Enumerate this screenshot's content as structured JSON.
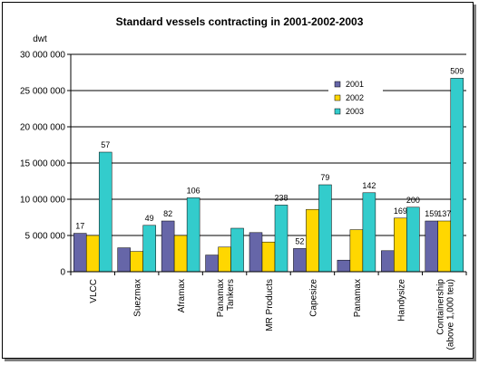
{
  "chart_data": {
    "type": "bar",
    "title": "Standard vessels contracting in 2001-2002-2003",
    "ylabel": "dwt",
    "xlabel": "",
    "ylim": [
      0,
      30000000
    ],
    "yticks": [
      "0",
      "5 000 000",
      "10 000 000",
      "15 000 000",
      "20 000 000",
      "25 000 000",
      "30 000 000"
    ],
    "ytick_values": [
      0,
      5000000,
      10000000,
      15000000,
      20000000,
      25000000,
      30000000
    ],
    "grid": "horizontal",
    "legend_position": "top-right",
    "categories": [
      [
        "VLCC"
      ],
      [
        "Suezmax"
      ],
      [
        "Aframax"
      ],
      [
        "Panamax",
        "Tankers"
      ],
      [
        "MR Products"
      ],
      [
        "Capesize"
      ],
      [
        "Panamax"
      ],
      [
        "Handysize"
      ],
      [
        "Containership",
        "(above 1,000 teu)"
      ]
    ],
    "series": [
      {
        "name": "2001",
        "color": "#6666a8",
        "values": [
          5300000,
          3300000,
          7000000,
          2300000,
          5400000,
          3200000,
          1600000,
          2900000,
          7000000
        ]
      },
      {
        "name": "2002",
        "color": "#ffd700",
        "values": [
          5000000,
          2800000,
          5000000,
          3400000,
          4100000,
          8600000,
          5800000,
          7400000,
          7000000
        ]
      },
      {
        "name": "2003",
        "color": "#33cccc",
        "values": [
          16500000,
          6400000,
          10200000,
          6000000,
          9200000,
          12000000,
          10900000,
          8900000,
          26700000
        ]
      }
    ],
    "data_labels": [
      {
        "category": 0,
        "series": 0,
        "text": "17"
      },
      {
        "category": 0,
        "series": 2,
        "text": "57"
      },
      {
        "category": 1,
        "series": 2,
        "text": "49"
      },
      {
        "category": 2,
        "series": 0,
        "text": "82"
      },
      {
        "category": 2,
        "series": 2,
        "text": "106"
      },
      {
        "category": 4,
        "series": 2,
        "text": "238"
      },
      {
        "category": 5,
        "series": 0,
        "text": "52"
      },
      {
        "category": 5,
        "series": 2,
        "text": "79"
      },
      {
        "category": 6,
        "series": 2,
        "text": "142"
      },
      {
        "category": 7,
        "series": 1,
        "text": "169"
      },
      {
        "category": 7,
        "series": 2,
        "text": "200"
      },
      {
        "category": 8,
        "series": 0,
        "text": "159"
      },
      {
        "category": 8,
        "series": 1,
        "text": "137"
      },
      {
        "category": 8,
        "series": 2,
        "text": "509"
      }
    ]
  }
}
